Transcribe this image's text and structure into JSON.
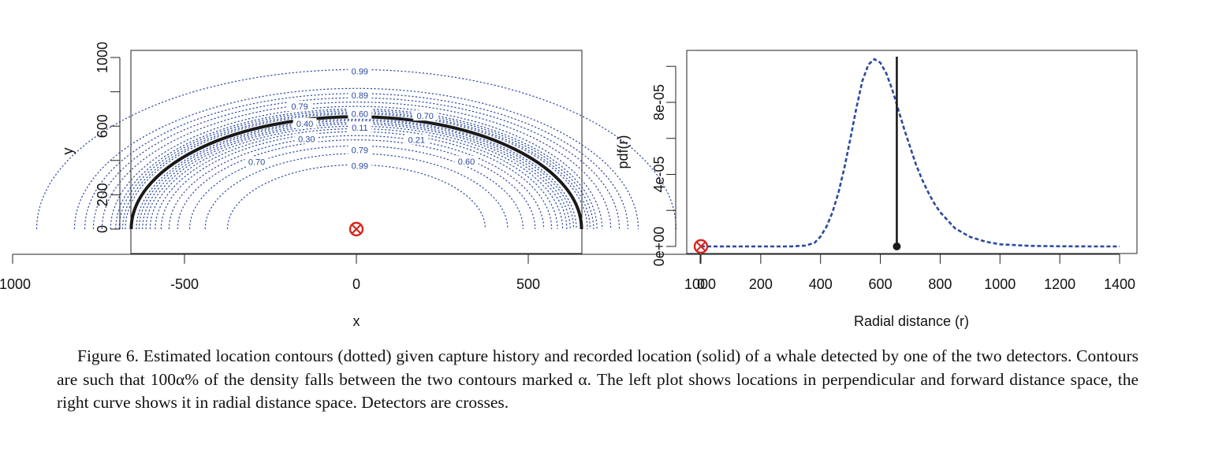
{
  "colors": {
    "contour": "#2b4a9e",
    "solid": "#1a1a1a",
    "detector": "#d7261e",
    "label": "#2b4a9e"
  },
  "left_plot": {
    "xlabel": "x",
    "ylabel": "y",
    "x_ticks": [
      "-1000",
      "-500",
      "0",
      "500",
      "1000"
    ],
    "y_ticks": [
      "0",
      "200",
      "600",
      "1000"
    ]
  },
  "right_plot": {
    "xlabel": "Radial distance (r)",
    "ylabel": "pdf(r)",
    "x_ticks": [
      "0",
      "200",
      "400",
      "600",
      "800",
      "1000",
      "1200",
      "1400"
    ],
    "y_ticks": [
      "0e+00",
      "4e-05",
      "8e-05"
    ]
  },
  "caption": {
    "label": "Figure 6.",
    "text": "Estimated location contours (dotted) given capture history and recorded location (solid) of a whale detected by one of the two detectors. Contours are such that 100α% of the density falls between the two contours marked α. The left plot shows locations in perpendicular and forward distance space, the right curve shows it in radial distance space. Detectors are crosses."
  },
  "chart_data": [
    {
      "type": "line",
      "panel": "left",
      "xlabel": "x",
      "ylabel": "y",
      "xlim": [
        -1000,
        1000
      ],
      "ylim": [
        0,
        1000
      ],
      "grid": false,
      "detector": {
        "x": 0,
        "y": 0,
        "marker": "circled-cross"
      },
      "recorded_location_radius": 655,
      "contour_radii": [
        930,
        820,
        790,
        765,
        740,
        715,
        700,
        690,
        680,
        672,
        640,
        632,
        622,
        612,
        600,
        585,
        568,
        545,
        520,
        485,
        440,
        375
      ],
      "contour_labels": [
        {
          "text": "0.99",
          "x": 10,
          "y": 920
        },
        {
          "text": "0.89",
          "x": 10,
          "y": 780
        },
        {
          "text": "0.79",
          "x": -165,
          "y": 715
        },
        {
          "text": "0.60",
          "x": 10,
          "y": 672
        },
        {
          "text": "0.70",
          "x": 200,
          "y": 660
        },
        {
          "text": "0.40",
          "x": -150,
          "y": 615
        },
        {
          "text": "0.11",
          "x": 10,
          "y": 592
        },
        {
          "text": "0.21",
          "x": 175,
          "y": 520
        },
        {
          "text": "0.30",
          "x": -145,
          "y": 525
        },
        {
          "text": "0.79",
          "x": 10,
          "y": 460
        },
        {
          "text": "0.70",
          "x": -290,
          "y": 392
        },
        {
          "text": "0.60",
          "x": 320,
          "y": 395
        },
        {
          "text": "0.99",
          "x": 10,
          "y": 370
        }
      ]
    },
    {
      "type": "line",
      "panel": "right",
      "xlabel": "Radial distance (r)",
      "ylabel": "pdf(r)",
      "xlim": [
        0,
        1400
      ],
      "ylim": [
        0,
        0.000105
      ],
      "grid": false,
      "detector": {
        "r": 0,
        "pdf": 0,
        "marker": "circled-cross"
      },
      "recorded_location": {
        "r": 655
      },
      "series": [
        {
          "style": "dotted",
          "x": [
            0,
            300,
            350,
            380,
            400,
            420,
            440,
            460,
            480,
            500,
            520,
            540,
            560,
            580,
            600,
            620,
            640,
            660,
            680,
            700,
            720,
            740,
            760,
            780,
            800,
            850,
            900,
            950,
            1000,
            1100,
            1200,
            1300,
            1400
          ],
          "y": [
            0,
            0,
            5e-07,
            2e-06,
            5.5e-06,
            1.1e-05,
            1.9e-05,
            3e-05,
            4.4e-05,
            6e-05,
            7.7e-05,
            9.2e-05,
            0.000101,
            0.000104,
            0.000102,
            9.6e-05,
            8.7e-05,
            7.6e-05,
            6.5e-05,
            5.5e-05,
            4.5e-05,
            3.7e-05,
            3e-05,
            2.4e-05,
            1.9e-05,
            1e-05,
            5.3e-06,
            2.7e-06,
            1.2e-06,
            3e-07,
            1e-07,
            0,
            0
          ]
        }
      ]
    }
  ]
}
